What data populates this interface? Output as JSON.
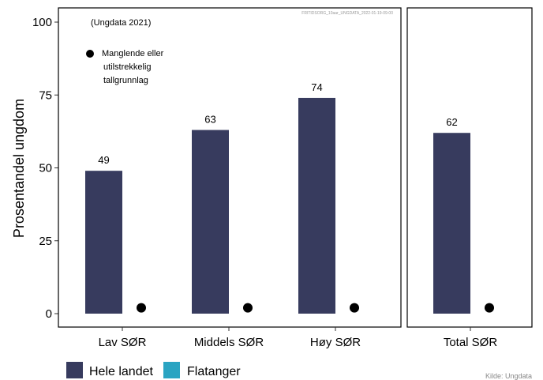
{
  "chart_data": {
    "type": "bar",
    "ylabel": "Prosentandel ungdom",
    "ylim": [
      0,
      100
    ],
    "yticks": [
      0,
      25,
      50,
      75,
      100
    ],
    "subtitle": "(Ungdata 2021)",
    "watermark": "FRITIDSORG_10aar_UNGDATA_2022-01-19-09-00",
    "source": "Kilde: Ungdata",
    "missing_note_lines": [
      "Manglende eller",
      "utilstrekkelig",
      "tallgrunnlag"
    ],
    "panels": [
      {
        "categories": [
          "Lav SØR",
          "Middels SØR",
          "Høy SØR"
        ],
        "series": [
          {
            "name": "Hele landet",
            "values": [
              49,
              63,
              74
            ],
            "color": "#373b5e"
          },
          {
            "name": "Flatanger",
            "values": [
              null,
              null,
              null
            ],
            "color": "#2aa4c2",
            "missing": true
          }
        ]
      },
      {
        "categories": [
          "Total SØR"
        ],
        "series": [
          {
            "name": "Hele landet",
            "values": [
              62
            ],
            "color": "#373b5e"
          },
          {
            "name": "Flatanger",
            "values": [
              null
            ],
            "color": "#2aa4c2",
            "missing": true
          }
        ]
      }
    ],
    "legend": {
      "placement": "bottom-left",
      "entries": [
        {
          "label": "Hele landet",
          "color": "#373b5e"
        },
        {
          "label": "Flatanger",
          "color": "#2aa4c2"
        }
      ]
    }
  }
}
